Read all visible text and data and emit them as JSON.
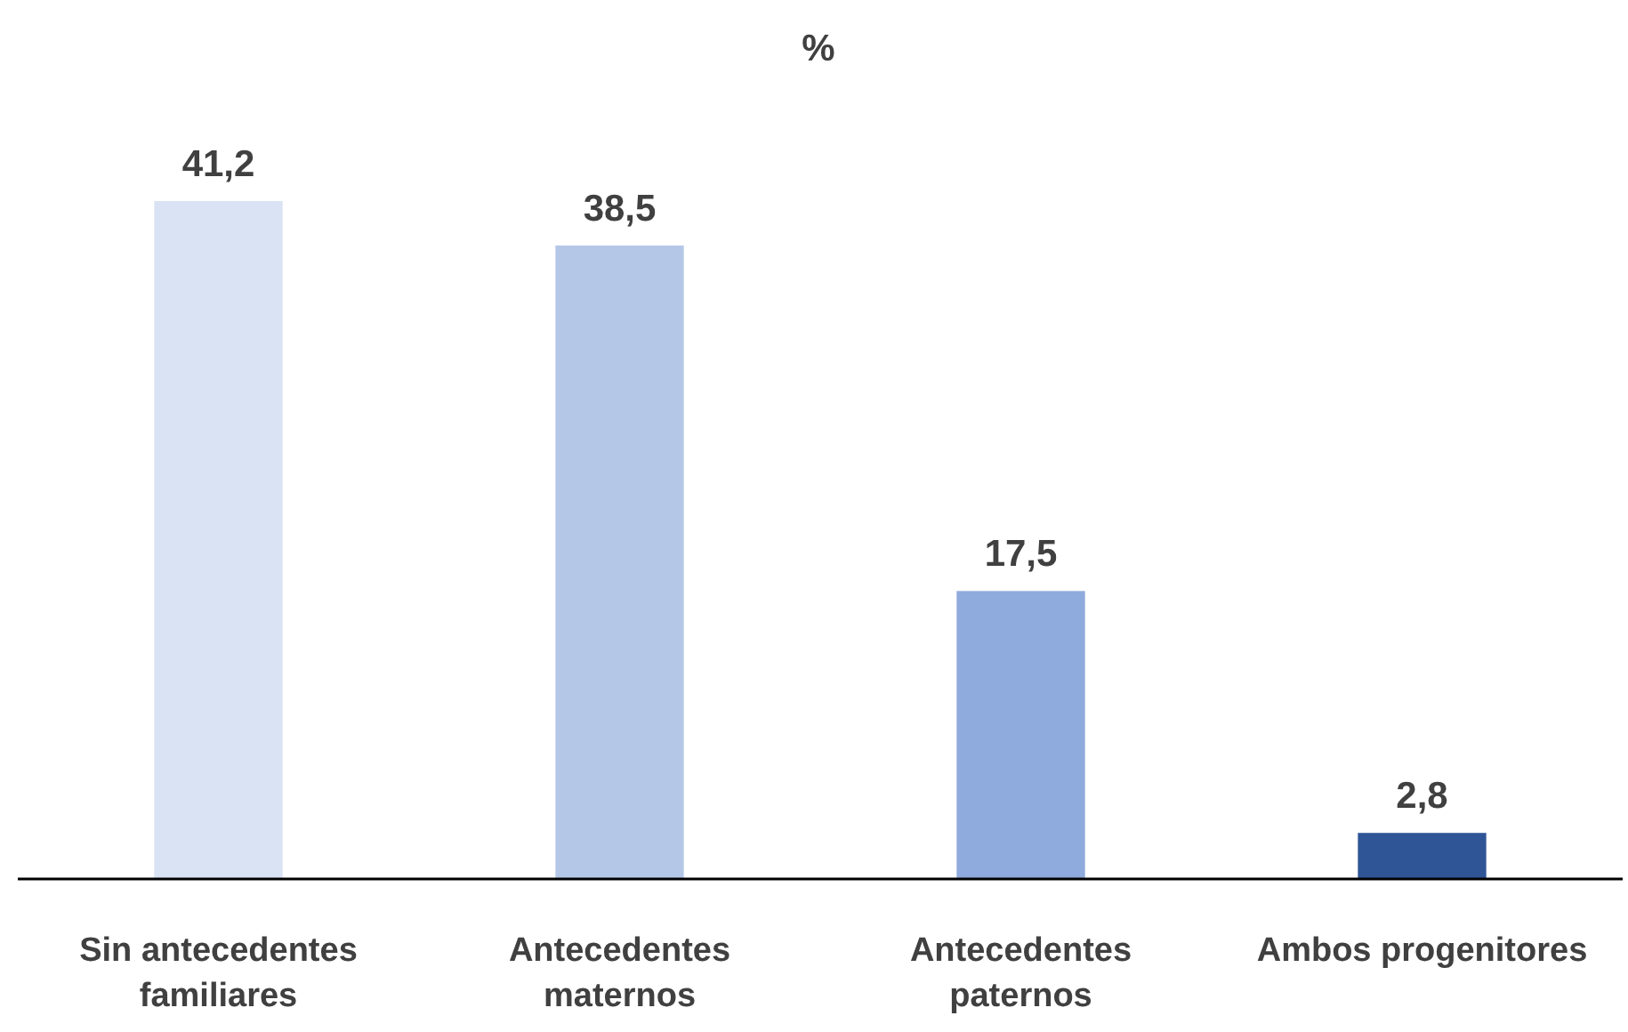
{
  "chart_data": {
    "type": "bar",
    "title": "%",
    "categories": [
      "Sin antecedentes familiares",
      "Antecedentes maternos",
      "Antecedentes paternos",
      "Ambos progenitores"
    ],
    "values": [
      41.2,
      38.5,
      17.5,
      2.8
    ],
    "value_labels": [
      "41,2",
      "38,5",
      "17,5",
      "2,8"
    ],
    "colors": [
      "#dae3f3",
      "#b4c7e7",
      "#8faadc",
      "#2f5597"
    ]
  }
}
